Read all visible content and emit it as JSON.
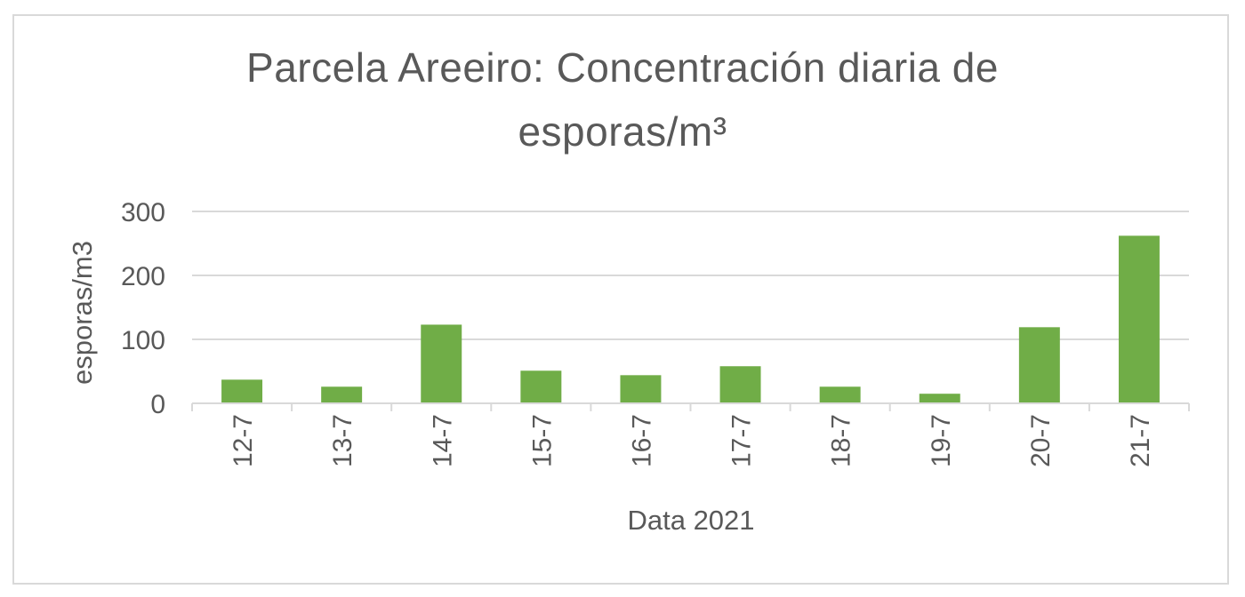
{
  "chart_data": {
    "type": "bar",
    "title_line1": "Parcela Areeiro: Concentración diaria de",
    "title_line2": "esporas/m³",
    "xlabel": "Data 2021",
    "ylabel": "esporas/m3",
    "categories": [
      "12-7",
      "13-7",
      "14-7",
      "15-7",
      "16-7",
      "17-7",
      "18-7",
      "19-7",
      "20-7",
      "21-7"
    ],
    "values": [
      37,
      26,
      123,
      51,
      44,
      58,
      26,
      15,
      119,
      262
    ],
    "ylim": [
      0,
      300
    ],
    "yticks": [
      0,
      100,
      200,
      300
    ],
    "grid": true,
    "bar_color": "#70ad47"
  }
}
